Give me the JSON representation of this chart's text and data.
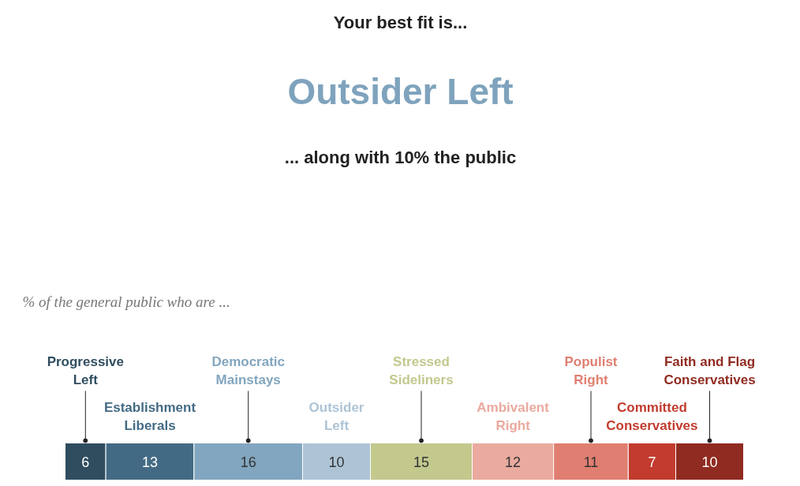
{
  "chart_data": {
    "type": "bar",
    "orientation": "horizontal",
    "stacked": true,
    "data_labels": true,
    "tick_labels": false,
    "title": "Your best fit is...",
    "subtitle": "Outsider Left",
    "annotations": [
      "... along with 10% the public",
      "% of the general public who are ..."
    ],
    "categories": [
      null
    ],
    "series": [
      {
        "name": "Progressive Left",
        "color": "#2f4d5f",
        "values": [
          6
        ]
      },
      {
        "name": "Establishment Liberals",
        "color": "#436a84",
        "values": [
          13
        ]
      },
      {
        "name": "Democratic Mainstays",
        "color": "#82a6bf",
        "values": [
          16
        ]
      },
      {
        "name": "Outsider Left",
        "color": "#adc4d6",
        "values": [
          10
        ]
      },
      {
        "name": "Stressed Sideliners",
        "color": "#c3c88d",
        "values": [
          15
        ]
      },
      {
        "name": "Ambivalent Right",
        "color": "#eaaa9f",
        "values": [
          12
        ]
      },
      {
        "name": "Populist Right",
        "color": "#e07f71",
        "values": [
          11
        ]
      },
      {
        "name": "Committed Conservatives",
        "color": "#c23b2e",
        "values": [
          7
        ]
      },
      {
        "name": "Faith and Flag Conservatives",
        "color": "#902b21",
        "values": [
          10
        ]
      }
    ]
  }
}
